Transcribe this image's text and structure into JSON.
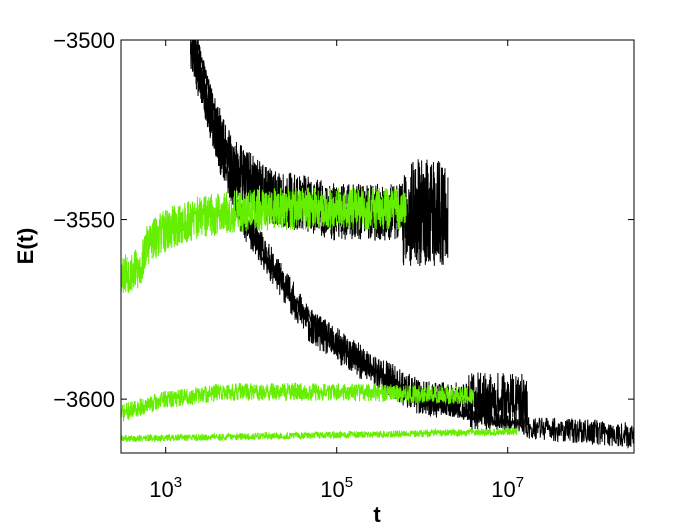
{
  "chart_data": {
    "type": "line",
    "xlabel": "t",
    "ylabel": "E(t)",
    "xscale": "log",
    "xlim": [
      300,
      300000000
    ],
    "ylim": [
      -3615,
      -3500
    ],
    "grid": false,
    "legend": "none",
    "x_ticks": [
      {
        "value": 1000,
        "base": "10",
        "exp": "3"
      },
      {
        "value": 100000,
        "base": "10",
        "exp": "5"
      },
      {
        "value": 10000000,
        "base": "10",
        "exp": "7"
      }
    ],
    "y_ticks": [
      {
        "value": -3500,
        "label": "−3500"
      },
      {
        "value": -3550,
        "label": "−3550"
      },
      {
        "value": -3600,
        "label": "−3600"
      }
    ],
    "colors": {
      "black": "#000000",
      "green": "#66ee00"
    },
    "series": [
      {
        "color": "black",
        "noise": 5,
        "seed": 11,
        "x_end": 17000000,
        "points": [
          [
            2000,
            -3500
          ],
          [
            4000,
            -3530
          ],
          [
            8000,
            -3550
          ],
          [
            20000,
            -3565
          ],
          [
            50000,
            -3580
          ],
          [
            200000,
            -3590
          ],
          [
            1000000,
            -3600
          ],
          [
            17000000,
            -3601
          ]
        ],
        "end_noise": {
          "from": 3500000,
          "amp": 3
        }
      },
      {
        "color": "black",
        "noise": 2,
        "seed": 23,
        "x_end": 300000000,
        "points": [
          [
            2300,
            -3500
          ],
          [
            5000,
            -3530
          ],
          [
            10000,
            -3555
          ],
          [
            30000,
            -3572
          ],
          [
            100000,
            -3585
          ],
          [
            500000,
            -3597
          ],
          [
            3000000,
            -3604
          ],
          [
            20000000,
            -3608
          ],
          [
            300000000,
            -3610
          ]
        ],
        "end_noise": {
          "from": 15000000,
          "amp": 1.5
        }
      },
      {
        "color": "black",
        "noise": 8,
        "seed": 37,
        "x_end": 2000000,
        "points": [
          [
            1950,
            -3500
          ],
          [
            3500,
            -3522
          ],
          [
            6000,
            -3535
          ],
          [
            15000,
            -3543
          ],
          [
            100000,
            -3548
          ],
          [
            2000000,
            -3548
          ]
        ],
        "end_noise": {
          "from": 600000,
          "amp": 7
        }
      },
      {
        "color": "green",
        "noise": 6,
        "seed": 53,
        "x_end": 650000,
        "points": [
          [
            300,
            -3565
          ],
          [
            500,
            -3564
          ],
          [
            600,
            -3557
          ],
          [
            1000,
            -3553
          ],
          [
            2000,
            -3550
          ],
          [
            5000,
            -3548
          ],
          [
            20000,
            -3547
          ],
          [
            650000,
            -3547
          ]
        ]
      },
      {
        "color": "green",
        "noise": 2.5,
        "seed": 71,
        "x_end": 4000000,
        "points": [
          [
            300,
            -3604
          ],
          [
            1000,
            -3600
          ],
          [
            5000,
            -3598
          ],
          [
            100000,
            -3598
          ],
          [
            4000000,
            -3599
          ]
        ]
      },
      {
        "color": "green",
        "noise": 1,
        "seed": 89,
        "x_end": 13000000,
        "points": [
          [
            300,
            -3611
          ],
          [
            100000,
            -3610
          ],
          [
            13000000,
            -3609
          ]
        ]
      }
    ]
  }
}
